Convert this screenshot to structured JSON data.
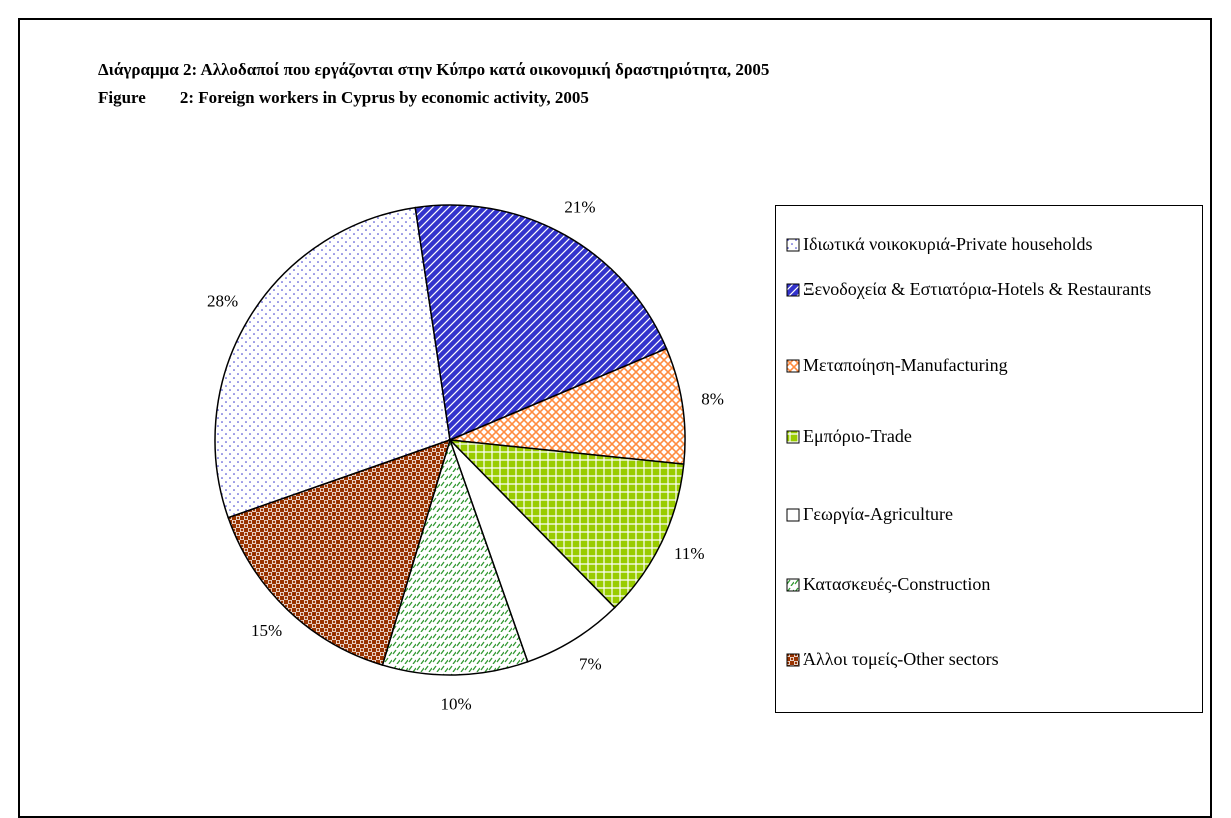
{
  "chart_data": {
    "type": "pie",
    "title": "Διάγραμμα 2: Αλλοδαποί που εργάζονται στην Κύπρο κατά οικονομική δραστηριότητα, 2005",
    "subtitle": "Figure        2: Foreign workers in Cyprus by economic activity, 2005",
    "categories": [
      "Ιδιωτικά νοικοκυριά-Private households",
      "Ξενοδοχεία & Εστιατόρια-Hotels & Restaurants",
      "Μεταποίηση-Manufacturing",
      "Εμπόριο-Trade",
      "Γεωργία-Agriculture",
      "Κατασκευές-Construction",
      "Άλλοι τομείς-Other sectors"
    ],
    "values": [
      28,
      21,
      8,
      11,
      7,
      10,
      15
    ],
    "value_labels": [
      "28%",
      "21%",
      "8%",
      "11%",
      "7%",
      "10%",
      "15%"
    ],
    "colors": [
      "#3333cc",
      "#3333cc",
      "#ff8c40",
      "#99cc00",
      "#ffffff",
      "#339933",
      "#993300"
    ]
  }
}
